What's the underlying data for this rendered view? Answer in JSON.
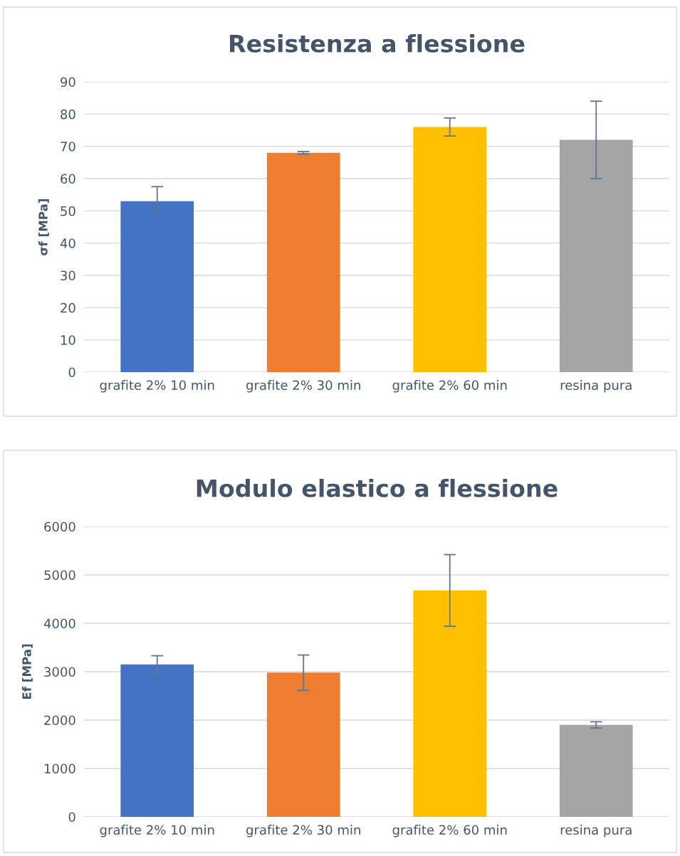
{
  "chart_data": [
    {
      "type": "bar",
      "title": "Resistenza a flessione",
      "ylabel": "σf [MPa]",
      "categories": [
        "grafite 2% 10 min",
        "grafite 2% 30 min",
        "grafite 2% 60 min",
        "resina pura"
      ],
      "values": [
        53,
        68,
        76,
        72
      ],
      "errors": [
        4.5,
        0.4,
        2.8,
        12
      ],
      "colors": [
        "#4472c4",
        "#ed7d31",
        "#ffc000",
        "#a5a5a5"
      ],
      "ylim": [
        0,
        90
      ],
      "yticks": [
        0,
        10,
        20,
        30,
        40,
        50,
        60,
        70,
        80,
        90
      ],
      "grid": "y"
    },
    {
      "type": "bar",
      "title": "Modulo elastico a flessione",
      "ylabel": "Ef [MPa]",
      "categories": [
        "grafite 2% 10 min",
        "grafite 2% 30 min",
        "grafite 2% 60 min",
        "resina pura"
      ],
      "values": [
        3150,
        2980,
        4680,
        1900
      ],
      "errors": [
        180,
        365,
        740,
        65
      ],
      "colors": [
        "#4472c4",
        "#ed7d31",
        "#ffc000",
        "#a5a5a5"
      ],
      "ylim": [
        0,
        6000
      ],
      "yticks": [
        0,
        1000,
        2000,
        3000,
        4000,
        5000,
        6000
      ],
      "grid": "y"
    }
  ]
}
